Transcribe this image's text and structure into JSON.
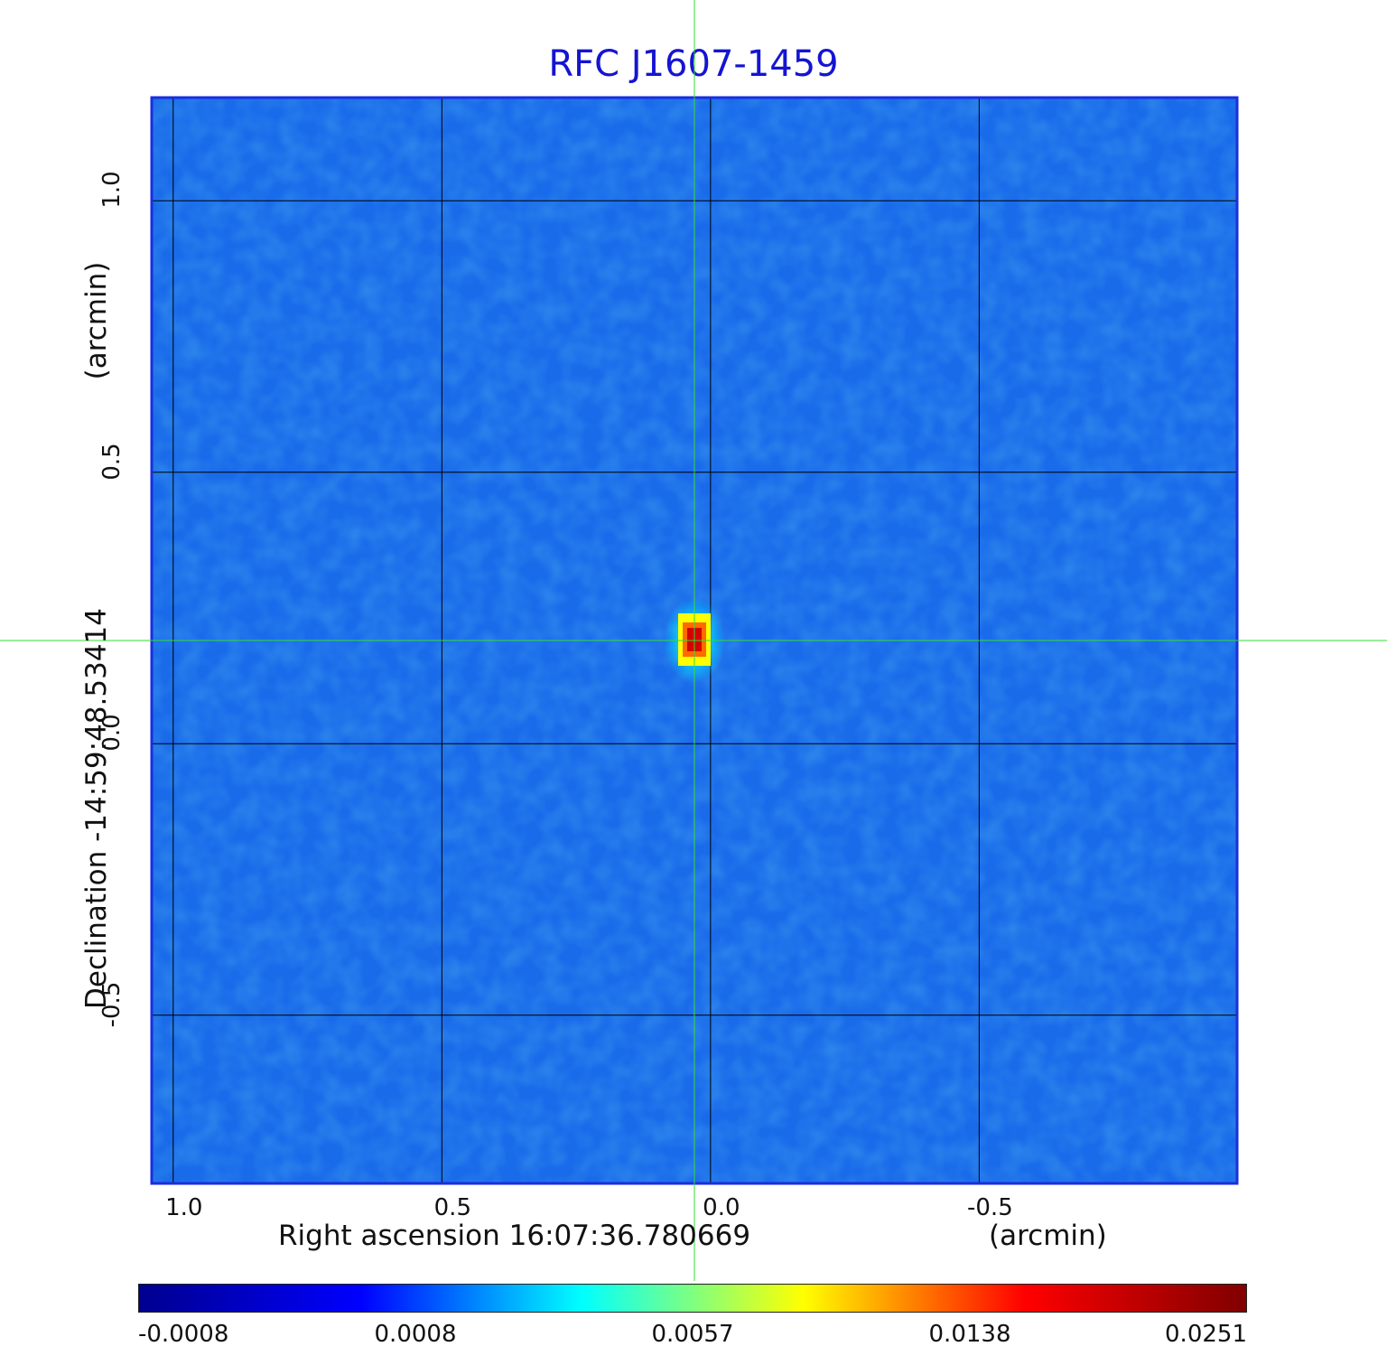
{
  "chart_data": {
    "type": "heatmap",
    "title": "RFC J1607-1459",
    "xlabel": "Right ascension  16:07:36.780669",
    "xunit": "(arcmin)",
    "ylabel": "Declination  -14:59:48.53414",
    "yunit": "(arcmin)",
    "x_ticks": [
      "1.0",
      "0.5",
      "0.0",
      "-0.5"
    ],
    "y_ticks": [
      "1.0",
      "0.5",
      "0.0",
      "-0.5"
    ],
    "xlim": [
      1.04,
      -0.98
    ],
    "ylim": [
      -0.81,
      1.19
    ],
    "grid": true,
    "crosshair": {
      "x": 0.03,
      "y": 0.19
    },
    "peak": {
      "x": 0.03,
      "y": 0.19,
      "value": 0.0251
    },
    "colorbar": {
      "ticks": [
        "-0.0008",
        "0.0008",
        "0.0057",
        "0.0138",
        "0.0251"
      ],
      "colormap": [
        "#00008f",
        "#0000ff",
        "#00ffff",
        "#ffff00",
        "#ff0000",
        "#800000"
      ]
    },
    "colors": {
      "title": "#1414d2",
      "frame": "#1a2ee0",
      "crosshair": "#33dd33",
      "grid": "#000000",
      "background_map": "#1a6bea"
    }
  }
}
